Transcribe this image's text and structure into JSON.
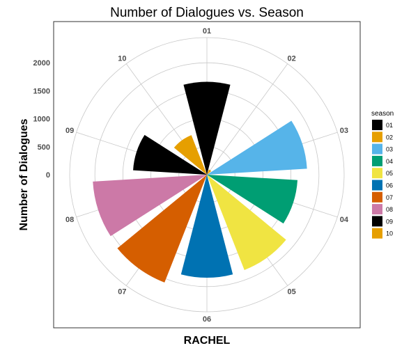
{
  "chart_data": {
    "type": "bar",
    "coordinates": "polar",
    "title": "Number of Dialogues vs. Season",
    "xlabel": "RACHEL",
    "ylabel": "Number of Dialogues",
    "categories": [
      "01",
      "02",
      "03",
      "04",
      "05",
      "06",
      "07",
      "08",
      "09",
      "10"
    ],
    "values": [
      1660,
      100,
      1790,
      1620,
      1830,
      1840,
      2070,
      2040,
      1320,
      760
    ],
    "ylim": [
      0,
      2450
    ],
    "y_ticks": [
      0,
      500,
      1000,
      1500,
      2000
    ],
    "y_tick_labels": [
      "0",
      "500",
      "1000",
      "1500",
      "2000"
    ],
    "grid": true,
    "legend": {
      "title": "season",
      "placement": "right",
      "entries": [
        {
          "label": "01",
          "color": "#000000"
        },
        {
          "label": "02",
          "color": "#E69F00"
        },
        {
          "label": "03",
          "color": "#56B4E9"
        },
        {
          "label": "04",
          "color": "#009E73"
        },
        {
          "label": "05",
          "color": "#F0E442"
        },
        {
          "label": "06",
          "color": "#0072B2"
        },
        {
          "label": "07",
          "color": "#D55E00"
        },
        {
          "label": "08",
          "color": "#CC79A7"
        },
        {
          "label": "09",
          "color": "#000000"
        },
        {
          "label": "10",
          "color": "#E69F00"
        }
      ]
    }
  }
}
